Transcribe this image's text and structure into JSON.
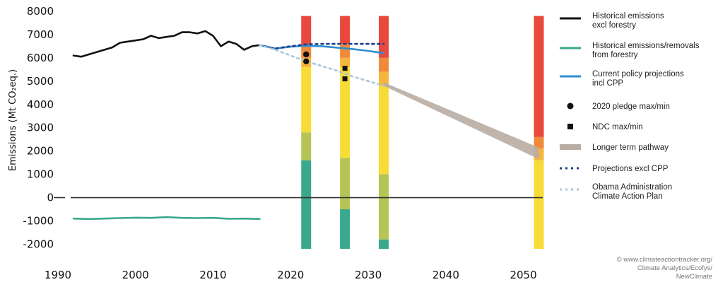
{
  "chart_data": {
    "type": "line",
    "ylabel": "Emissions (Mt CO₂eq.)",
    "xlim": [
      1990,
      2053
    ],
    "ylim": [
      -2200,
      8000
    ],
    "x_ticks": [
      1990,
      2000,
      2010,
      2020,
      2030,
      2040,
      2050
    ],
    "y_ticks": [
      8000,
      7000,
      6000,
      5000,
      4000,
      3000,
      2000,
      1000,
      0,
      -1000,
      -2000
    ],
    "y_tick_labels": [
      "8000",
      "7000",
      "6000",
      "5000",
      "4000",
      "3000",
      "2000",
      "1000",
      "0",
      "-1000",
      "-2000"
    ],
    "zero_line": true,
    "series": [
      {
        "name": "Historical emissions excl forestry",
        "color": "#111111",
        "style": "solid",
        "x": [
          1992,
          1993,
          1994,
          1995,
          1996,
          1997,
          1998,
          1999,
          2000,
          2001,
          2002,
          2003,
          2004,
          2005,
          2006,
          2007,
          2008,
          2009,
          2010,
          2011,
          2012,
          2013,
          2014,
          2015,
          2016
        ],
        "y": [
          6100,
          6050,
          6150,
          6250,
          6350,
          6450,
          6650,
          6700,
          6750,
          6800,
          6950,
          6850,
          6900,
          6950,
          7100,
          7100,
          7050,
          7150,
          6950,
          6500,
          6700,
          6600,
          6350,
          6500,
          6550
        ]
      },
      {
        "name": "Historical emissions/removals from forestry",
        "color": "#3aa88c",
        "style": "solid",
        "x": [
          1992,
          1994,
          1996,
          1998,
          2000,
          2002,
          2004,
          2006,
          2008,
          2010,
          2012,
          2014,
          2016
        ],
        "y": [
          -900,
          -920,
          -900,
          -880,
          -860,
          -870,
          -840,
          -870,
          -880,
          -870,
          -910,
          -900,
          -920
        ]
      },
      {
        "name": "Current policy projections incl CPP",
        "color": "#2f8fd0",
        "style": "solid",
        "x": [
          2016,
          2018,
          2020,
          2022,
          2024,
          2026,
          2028,
          2030,
          2032
        ],
        "y": [
          6550,
          6400,
          6480,
          6520,
          6500,
          6440,
          6380,
          6300,
          6200
        ]
      },
      {
        "name": "Projections excl CPP",
        "color": "#1b3f8a",
        "style": "dotted",
        "x": [
          2016,
          2018,
          2020,
          2022,
          2024,
          2026,
          2028,
          2030,
          2032
        ],
        "y": [
          6550,
          6400,
          6500,
          6580,
          6600,
          6600,
          6600,
          6600,
          6600
        ]
      },
      {
        "name": "Obama Administration Climate Action Plan",
        "color": "#a9c7dc",
        "style": "dotted",
        "x": [
          2016,
          2018,
          2020,
          2022,
          2024,
          2026,
          2028,
          2030,
          2032
        ],
        "y": [
          6550,
          6350,
          6100,
          5850,
          5650,
          5450,
          5200,
          5000,
          4800
        ]
      }
    ],
    "longer_term_pathway": {
      "name": "Longer term pathway",
      "color": "#b8ada4",
      "x": [
        2032,
        2052
      ],
      "upper": [
        4950,
        2150
      ],
      "lower": [
        4800,
        1650
      ]
    },
    "pledge_2020": {
      "name": "2020 pledge max/min",
      "x": 2022,
      "values": [
        6150,
        5850
      ]
    },
    "ndc": {
      "name": "NDC max/min",
      "x": 2027,
      "values": [
        5550,
        5100
      ]
    },
    "rating_bars": [
      {
        "x": 2022,
        "bands": [
          {
            "from": 6500,
            "to": 7800,
            "color": "#e8493c"
          },
          {
            "from": 6000,
            "to": 6500,
            "color": "#f08a3a"
          },
          {
            "from": 5600,
            "to": 6000,
            "color": "#f5b63c"
          },
          {
            "from": 2800,
            "to": 5600,
            "color": "#f7dc37"
          },
          {
            "from": 1600,
            "to": 2800,
            "color": "#b5c455"
          },
          {
            "from": -2200,
            "to": 1600,
            "color": "#3aa88c"
          }
        ]
      },
      {
        "x": 2027,
        "bands": [
          {
            "from": 6600,
            "to": 7800,
            "color": "#e8493c"
          },
          {
            "from": 6000,
            "to": 6600,
            "color": "#f08a3a"
          },
          {
            "from": 5600,
            "to": 6000,
            "color": "#f5b63c"
          },
          {
            "from": 1700,
            "to": 5600,
            "color": "#f7dc37"
          },
          {
            "from": -500,
            "to": 1700,
            "color": "#b5c455"
          },
          {
            "from": -2200,
            "to": -500,
            "color": "#3aa88c"
          }
        ]
      },
      {
        "x": 2032,
        "bands": [
          {
            "from": 6000,
            "to": 7800,
            "color": "#e8493c"
          },
          {
            "from": 5400,
            "to": 6000,
            "color": "#f08a3a"
          },
          {
            "from": 4800,
            "to": 5400,
            "color": "#f5b63c"
          },
          {
            "from": 1000,
            "to": 4800,
            "color": "#f7dc37"
          },
          {
            "from": -1800,
            "to": 1000,
            "color": "#b5c455"
          },
          {
            "from": -2200,
            "to": -1800,
            "color": "#3aa88c"
          }
        ]
      },
      {
        "x": 2052,
        "bands": [
          {
            "from": 2600,
            "to": 7800,
            "color": "#e8493c"
          },
          {
            "from": 2100,
            "to": 2600,
            "color": "#f08a3a"
          },
          {
            "from": 1600,
            "to": 2100,
            "color": "#f5b63c"
          },
          {
            "from": -2200,
            "to": 1600,
            "color": "#f7dc37"
          }
        ]
      }
    ],
    "legend": {
      "placement": "right",
      "items": [
        {
          "kind": "line",
          "color": "#111111",
          "lines": [
            "Historical emissions",
            "excl forestry"
          ]
        },
        {
          "kind": "line",
          "color": "#3aa88c",
          "lines": [
            "Historical emissions/removals",
            "from forestry"
          ]
        },
        {
          "kind": "line",
          "color": "#2f8fd0",
          "lines": [
            "Current policy projections",
            "incl CPP"
          ]
        },
        {
          "kind": "circle",
          "color": "#111111",
          "lines": [
            "2020 pledge max/min"
          ]
        },
        {
          "kind": "square",
          "color": "#111111",
          "lines": [
            "NDC max/min"
          ]
        },
        {
          "kind": "band",
          "color": "#b8ada4",
          "lines": [
            "Longer term pathway"
          ]
        },
        {
          "kind": "dots",
          "color": "#1b3f8a",
          "lines": [
            "Projections excl CPP"
          ]
        },
        {
          "kind": "dots",
          "color": "#a9c7dc",
          "lines": [
            "Obama Administration",
            "Climate Action Plan"
          ]
        }
      ]
    },
    "credit": [
      "© www.climateactiontracker.org/",
      "Climate Analytics/Ecofys/",
      "NewClimate"
    ]
  }
}
